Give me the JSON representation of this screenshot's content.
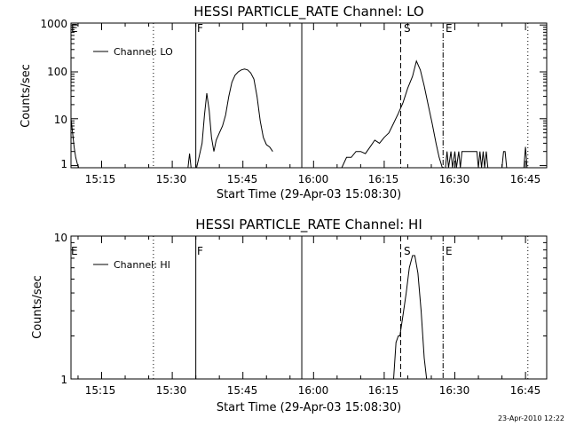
{
  "timestamp": "23-Apr-2010 12:22",
  "chart_data": [
    {
      "type": "line",
      "title": "HESSI PARTICLE_RATE Channel: LO",
      "xlabel": "Start Time (29-Apr-03 15:08:30)",
      "ylabel": "Counts/sec",
      "y_scale": "log",
      "ylim": [
        0.9,
        1100
      ],
      "xlim": [
        "15:08:30",
        "16:49:30"
      ],
      "y_ticks": [
        "1",
        "10",
        "100",
        "1000"
      ],
      "x_ticks": [
        "15:15",
        "15:30",
        "15:45",
        "16:00",
        "16:15",
        "16:30",
        "16:45"
      ],
      "legend": {
        "label": "Channel: LO",
        "position": "top-left"
      },
      "series": [
        {
          "name": "Channel: LO",
          "segments": [
            [
              [
                "15:08:30",
                10
              ],
              [
                "15:08:50",
                5
              ],
              [
                "15:09:10",
                2.5
              ],
              [
                "15:09:30",
                1.5
              ],
              [
                "15:09:50",
                1.1
              ],
              [
                "15:10:10",
                0.9
              ]
            ],
            [
              [
                "15:33:20",
                0.9
              ],
              [
                "15:33:40",
                1.8
              ],
              [
                "15:34:00",
                0.9
              ]
            ],
            [
              [
                "15:35:10",
                0.9
              ],
              [
                "15:35:40",
                1.5
              ],
              [
                "15:36:20",
                3
              ],
              [
                "15:36:50",
                12
              ],
              [
                "15:37:20",
                35
              ],
              [
                "15:37:50",
                15
              ],
              [
                "15:38:20",
                4
              ],
              [
                "15:38:50",
                2
              ],
              [
                "15:39:20",
                3.5
              ],
              [
                "15:40:00",
                5
              ],
              [
                "15:40:40",
                7
              ],
              [
                "15:41:20",
                12
              ],
              [
                "15:42:00",
                30
              ],
              [
                "15:42:40",
                60
              ],
              [
                "15:43:20",
                85
              ],
              [
                "15:44:00",
                100
              ],
              [
                "15:44:40",
                110
              ],
              [
                "15:45:20",
                115
              ],
              [
                "15:46:00",
                110
              ],
              [
                "15:46:40",
                95
              ],
              [
                "15:47:20",
                70
              ],
              [
                "15:48:00",
                30
              ],
              [
                "15:48:40",
                9
              ],
              [
                "15:49:20",
                4
              ],
              [
                "15:50:00",
                2.8
              ],
              [
                "15:50:40",
                2.5
              ],
              [
                "15:51:20",
                2
              ]
            ],
            [
              [
                "16:06:00",
                0.9
              ],
              [
                "16:07:00",
                1.5
              ],
              [
                "16:08:00",
                1.5
              ],
              [
                "16:09:00",
                2
              ],
              [
                "16:10:00",
                2
              ],
              [
                "16:11:00",
                1.8
              ],
              [
                "16:12:00",
                2.5
              ],
              [
                "16:13:00",
                3.5
              ],
              [
                "16:14:00",
                3
              ],
              [
                "16:15:00",
                4
              ],
              [
                "16:16:00",
                5
              ],
              [
                "16:17:00",
                8
              ],
              [
                "16:18:00",
                13
              ],
              [
                "16:19:00",
                22
              ],
              [
                "16:20:00",
                45
              ],
              [
                "16:21:00",
                80
              ],
              [
                "16:21:50",
                170
              ],
              [
                "16:22:40",
                110
              ],
              [
                "16:23:30",
                50
              ],
              [
                "16:24:20",
                20
              ],
              [
                "16:25:10",
                8
              ],
              [
                "16:26:00",
                3
              ],
              [
                "16:26:40",
                1.5
              ],
              [
                "16:27:20",
                0.9
              ]
            ],
            [
              [
                "16:28:00",
                0.9
              ],
              [
                "16:28:20",
                2
              ],
              [
                "16:28:40",
                0.9
              ],
              [
                "16:29:10",
                2
              ],
              [
                "16:29:30",
                0.9
              ],
              [
                "16:30:00",
                2
              ],
              [
                "16:30:20",
                0.9
              ],
              [
                "16:30:50",
                2
              ],
              [
                "16:31:10",
                0.9
              ],
              [
                "16:31:30",
                2
              ],
              [
                "16:32:00",
                2
              ],
              [
                "16:32:40",
                2
              ],
              [
                "16:33:20",
                2
              ],
              [
                "16:34:00",
                2
              ],
              [
                "16:34:40",
                2
              ],
              [
                "16:35:00",
                0.9
              ],
              [
                "16:35:20",
                2
              ],
              [
                "16:35:40",
                0.9
              ],
              [
                "16:36:00",
                2
              ],
              [
                "16:36:20",
                0.9
              ],
              [
                "16:36:40",
                2
              ],
              [
                "16:37:00",
                0.9
              ],
              [
                "16:40:00",
                0.9
              ],
              [
                "16:40:20",
                2
              ],
              [
                "16:40:40",
                2
              ],
              [
                "16:41:00",
                0.9
              ]
            ],
            [
              [
                "16:44:40",
                0.9
              ],
              [
                "16:45:00",
                2.5
              ],
              [
                "16:45:20",
                0.9
              ]
            ]
          ]
        }
      ]
    },
    {
      "type": "line",
      "title": "HESSI PARTICLE_RATE Channel: HI",
      "xlabel": "Start Time (29-Apr-03 15:08:30)",
      "ylabel": "Counts/sec",
      "y_scale": "log",
      "ylim": [
        1,
        10
      ],
      "xlim": [
        "15:08:30",
        "16:49:30"
      ],
      "y_ticks": [
        "1",
        "10"
      ],
      "x_ticks": [
        "15:15",
        "15:30",
        "15:45",
        "16:00",
        "16:15",
        "16:30",
        "16:45"
      ],
      "legend": {
        "label": "Channel: HI",
        "position": "top-left"
      },
      "series": [
        {
          "name": "Channel: HI",
          "segments": [
            [
              [
                "16:17:00",
                1.0
              ],
              [
                "16:17:30",
                1.8
              ],
              [
                "16:18:00",
                2.0
              ],
              [
                "16:18:20",
                2.0
              ],
              [
                "16:19:00",
                2.8
              ],
              [
                "16:19:40",
                4.0
              ],
              [
                "16:20:20",
                6.0
              ],
              [
                "16:21:00",
                7.3
              ],
              [
                "16:21:30",
                7.3
              ],
              [
                "16:22:10",
                5.5
              ],
              [
                "16:22:50",
                3.0
              ],
              [
                "16:23:30",
                1.4
              ],
              [
                "16:24:00",
                1.0
              ]
            ]
          ]
        }
      ]
    }
  ],
  "markers": [
    {
      "label": "E",
      "time": "15:08:30",
      "style": "none"
    },
    {
      "label": "",
      "time": "15:26:00",
      "style": "dotted"
    },
    {
      "label": "F",
      "time": "15:35:00",
      "style": "solid"
    },
    {
      "label": "",
      "time": "15:57:30",
      "style": "solid"
    },
    {
      "label": "S",
      "time": "16:18:30",
      "style": "dashed"
    },
    {
      "label": "E",
      "time": "16:27:30",
      "style": "dashdot"
    },
    {
      "label": "",
      "time": "16:45:30",
      "style": "dotted"
    }
  ]
}
